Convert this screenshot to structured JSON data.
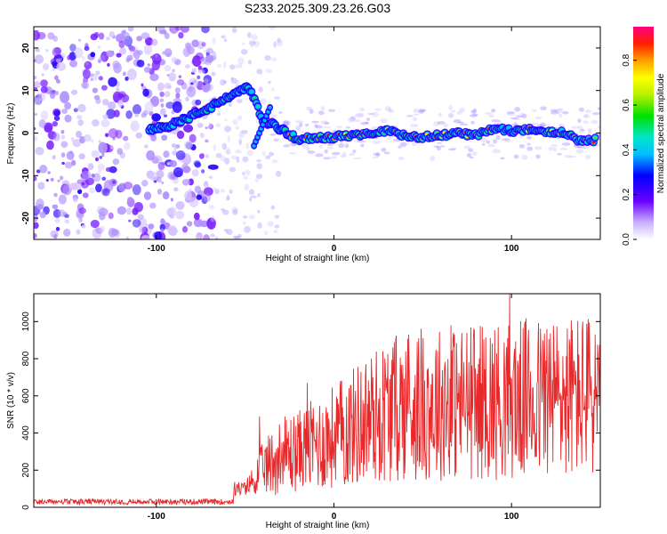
{
  "title": "S233.2025.309.23.26.G03",
  "colors": {
    "snr_line": "#e8282a",
    "axis": "#000000",
    "background": "#ffffff"
  },
  "chart_data": [
    {
      "type": "heatmap",
      "panel": "spectrogram",
      "xlabel": "Height of straight line (km)",
      "ylabel": "Frequency (Hz)",
      "xlim": [
        -169,
        150
      ],
      "ylim": [
        -25,
        25
      ],
      "xticks": [
        -100,
        0,
        100
      ],
      "xtick_labels": [
        "-100",
        "0",
        "100"
      ],
      "yticks": [
        -20,
        -10,
        0,
        10,
        20
      ],
      "ytick_labels": [
        "-20",
        "-10",
        "0",
        "10",
        "20"
      ],
      "colorbar": {
        "label": "Normalized spectral amplitude",
        "range": [
          0,
          0.95
        ],
        "ticks": [
          0.0,
          0.2,
          0.4,
          0.6,
          0.8
        ],
        "tick_labels": [
          "0.0",
          "0.2",
          "0.4",
          "0.6",
          "0.8"
        ],
        "colormap": "rainbow"
      },
      "ridge": {
        "description_points_km_hz": [
          [
            -104,
            0.5
          ],
          [
            -95,
            1.5
          ],
          [
            -85,
            3
          ],
          [
            -75,
            5
          ],
          [
            -65,
            7
          ],
          [
            -55,
            9.5
          ],
          [
            -48,
            11
          ],
          [
            -40,
            3
          ],
          [
            -30,
            1
          ],
          [
            -20,
            -1.5
          ],
          [
            -10,
            -1
          ],
          [
            0,
            -1
          ],
          [
            10,
            -0.5
          ],
          [
            20,
            0
          ],
          [
            30,
            0.5
          ],
          [
            40,
            -0.5
          ],
          [
            50,
            -1
          ],
          [
            60,
            -0.5
          ],
          [
            70,
            0
          ],
          [
            80,
            -0.5
          ],
          [
            90,
            1
          ],
          [
            100,
            0.5
          ],
          [
            110,
            1
          ],
          [
            120,
            0.5
          ],
          [
            130,
            0
          ],
          [
            140,
            -2
          ],
          [
            148,
            -1.5
          ]
        ]
      }
    },
    {
      "type": "line",
      "panel": "snr",
      "xlabel": "Height of straight line (km)",
      "ylabel": "SNR (10 * v/v)",
      "xlim": [
        -169,
        150
      ],
      "ylim": [
        0,
        1150
      ],
      "xticks": [
        -100,
        0,
        100
      ],
      "xtick_labels": [
        "-100",
        "0",
        "100"
      ],
      "yticks": [
        0,
        200,
        400,
        600,
        800,
        1000
      ],
      "ytick_labels": [
        "0",
        "200",
        "400",
        "600",
        "800",
        "1000"
      ],
      "series": [
        {
          "name": "SNR",
          "trend_km_snr": [
            [
              -169,
              30
            ],
            [
              -120,
              30
            ],
            [
              -80,
              35
            ],
            [
              -60,
              50
            ],
            [
              -50,
              80
            ],
            [
              -40,
              200
            ],
            [
              -30,
              280
            ],
            [
              -20,
              300
            ],
            [
              -10,
              340
            ],
            [
              0,
              380
            ],
            [
              10,
              430
            ],
            [
              20,
              480
            ],
            [
              30,
              520
            ],
            [
              40,
              550
            ],
            [
              60,
              560
            ],
            [
              80,
              570
            ],
            [
              100,
              580
            ],
            [
              120,
              590
            ],
            [
              140,
              600
            ],
            [
              150,
              600
            ]
          ],
          "peaks_km_snr": [
            [
              -42,
              490
            ],
            [
              -15,
              670
            ],
            [
              22,
              700
            ],
            [
              42,
              930
            ],
            [
              66,
              980
            ],
            [
              99,
              1150
            ],
            [
              120,
              960
            ],
            [
              143,
              950
            ]
          ]
        }
      ]
    }
  ]
}
